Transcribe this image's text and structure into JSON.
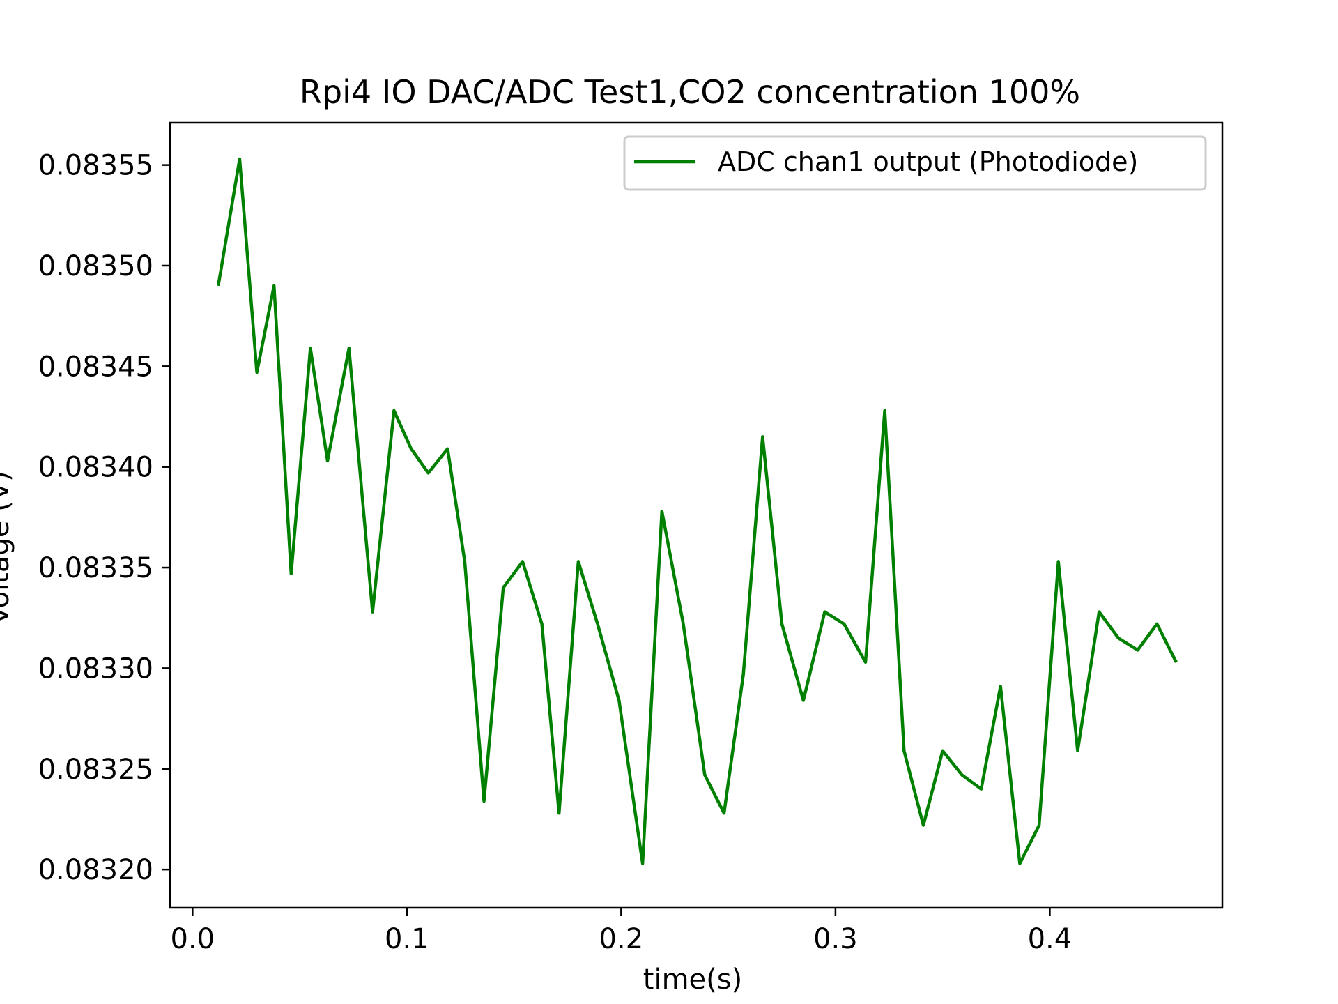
{
  "chart_data": {
    "type": "line",
    "title": "Rpi4 IO DAC/ADC Test1,CO2 concentration 100%",
    "xlabel": "time(s)",
    "ylabel": "Voltage (V)",
    "xlim": [
      -0.0105,
      0.4805
    ],
    "ylim": [
      0.083181,
      0.083571
    ],
    "x_ticks": [
      0.0,
      0.1,
      0.2,
      0.3,
      0.4
    ],
    "x_tick_labels": [
      "0.0",
      "0.1",
      "0.2",
      "0.3",
      "0.4"
    ],
    "y_ticks": [
      0.0832,
      0.08325,
      0.0833,
      0.08335,
      0.0834,
      0.08345,
      0.0835,
      0.08355
    ],
    "y_tick_labels": [
      "0.08320",
      "0.08325",
      "0.08330",
      "0.08335",
      "0.08340",
      "0.08345",
      "0.08350",
      "0.08355"
    ],
    "grid": false,
    "legend_position": "top-right",
    "series": [
      {
        "name": "ADC chan1 output  (Photodiode)",
        "color": "#008000",
        "x": [
          0.012,
          0.022,
          0.03,
          0.038,
          0.046,
          0.055,
          0.063,
          0.073,
          0.084,
          0.094,
          0.102,
          0.11,
          0.119,
          0.127,
          0.136,
          0.145,
          0.154,
          0.163,
          0.171,
          0.18,
          0.189,
          0.199,
          0.21,
          0.219,
          0.229,
          0.239,
          0.248,
          0.257,
          0.266,
          0.275,
          0.285,
          0.295,
          0.304,
          0.314,
          0.323,
          0.332,
          0.341,
          0.35,
          0.359,
          0.368,
          0.377,
          0.386,
          0.395,
          0.404,
          0.413,
          0.423,
          0.432,
          0.441,
          0.45,
          0.459
        ],
        "y": [
          0.08349,
          0.083553,
          0.083447,
          0.08349,
          0.083347,
          0.083459,
          0.083403,
          0.083459,
          0.083328,
          0.083428,
          0.083409,
          0.083397,
          0.083409,
          0.083353,
          0.083234,
          0.08334,
          0.083353,
          0.083322,
          0.083228,
          0.083353,
          0.083322,
          0.083284,
          0.083203,
          0.083378,
          0.083322,
          0.083247,
          0.083228,
          0.083297,
          0.083415,
          0.083322,
          0.083284,
          0.083328,
          0.083322,
          0.083303,
          0.083428,
          0.083259,
          0.083222,
          0.083259,
          0.083247,
          0.08324,
          0.083291,
          0.083203,
          0.083222,
          0.083353,
          0.083259,
          0.083328,
          0.083315,
          0.083309,
          0.083322,
          0.083303
        ]
      }
    ]
  }
}
